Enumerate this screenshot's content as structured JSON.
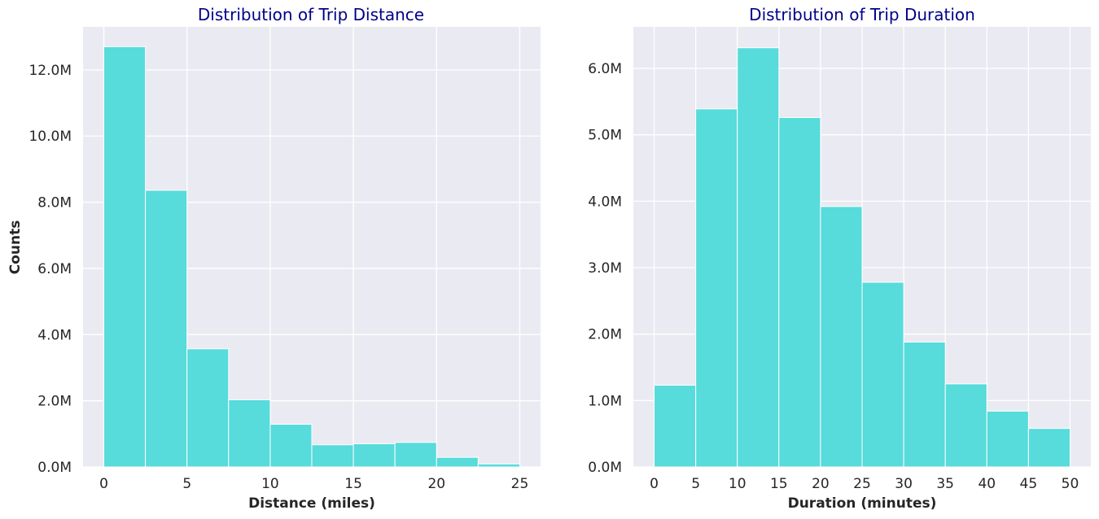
{
  "figure": {
    "background": "#ffffff",
    "panel_background": "#eaeaf2",
    "grid_color": "#ffffff",
    "bar_color": "#57dbdb",
    "bar_edge_color": "#ffffff",
    "title_color": "#00008b",
    "text_color": "#262626"
  },
  "chart_data": [
    {
      "type": "bar",
      "title": "Distribution of Trip Distance",
      "xlabel": "Distance (miles)",
      "ylabel": "Counts",
      "bin_edges": [
        0,
        2.5,
        5,
        7.5,
        10,
        12.5,
        15,
        17.5,
        20,
        22.5,
        25
      ],
      "values": [
        12700000,
        8360000,
        3570000,
        2030000,
        1290000,
        670000,
        700000,
        740000,
        290000,
        90000
      ],
      "xlim": [
        -1.25,
        26.25
      ],
      "ylim": [
        0,
        13300000
      ],
      "xticks": [
        0,
        5,
        10,
        15,
        20,
        25
      ],
      "xtick_labels": [
        "0",
        "5",
        "10",
        "15",
        "20",
        "25"
      ],
      "yticks": [
        0,
        2000000,
        4000000,
        6000000,
        8000000,
        10000000,
        12000000
      ],
      "ytick_labels": [
        "0.0M",
        "2.0M",
        "4.0M",
        "6.0M",
        "8.0M",
        "10.0M",
        "12.0M"
      ],
      "grid": true
    },
    {
      "type": "bar",
      "title": "Distribution of Trip Duration",
      "xlabel": "Duration (minutes)",
      "ylabel": "",
      "bin_edges": [
        0,
        5,
        10,
        15,
        20,
        25,
        30,
        35,
        40,
        45,
        50
      ],
      "values": [
        1230000,
        5390000,
        6310000,
        5260000,
        3920000,
        2780000,
        1880000,
        1250000,
        840000,
        580000
      ],
      "xlim": [
        -2.5,
        52.5
      ],
      "ylim": [
        0,
        6625000
      ],
      "xticks": [
        0,
        5,
        10,
        15,
        20,
        25,
        30,
        35,
        40,
        45,
        50
      ],
      "xtick_labels": [
        "0",
        "5",
        "10",
        "15",
        "20",
        "25",
        "30",
        "35",
        "40",
        "45",
        "50"
      ],
      "yticks": [
        0,
        1000000,
        2000000,
        3000000,
        4000000,
        5000000,
        6000000
      ],
      "ytick_labels": [
        "0.0M",
        "1.0M",
        "2.0M",
        "3.0M",
        "4.0M",
        "5.0M",
        "6.0M"
      ],
      "grid": true
    }
  ]
}
